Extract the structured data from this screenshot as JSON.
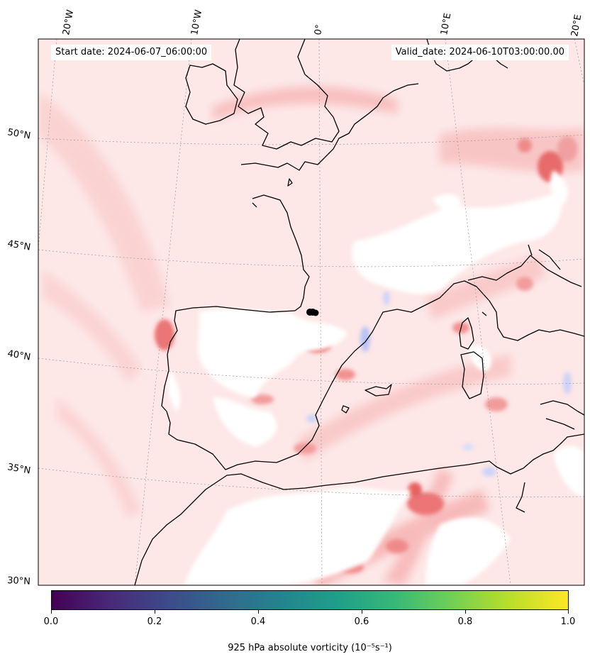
{
  "header": {
    "start_date": "Start date: 2024-06-07_06:00:00",
    "valid_date": "Valid_date: 2024-06-10T03:00:00.00"
  },
  "map": {
    "projection": "conic",
    "extent": {
      "lon_min": -20,
      "lon_max": 20,
      "lat_min": 30,
      "lat_max": 54
    },
    "gridlines": "on",
    "lon_labels": [
      "20°W",
      "10°W",
      "0°",
      "10°E",
      "20°E"
    ],
    "lat_labels": [
      "50°N",
      "45°N",
      "40°N",
      "35°N",
      "30°N"
    ],
    "field_colors": {
      "positive": "#f6a9a9",
      "strong_positive": "#e85656",
      "negative": "#c9d0f7",
      "zero": "#ffffff"
    },
    "marker": {
      "description": "black dot cluster",
      "lon": -0.1,
      "lat": 41.5
    }
  },
  "colorbar": {
    "colormap": "viridis",
    "min": 0.0,
    "max": 1.0,
    "ticks": [
      "0.0",
      "0.2",
      "0.4",
      "0.6",
      "0.8",
      "1.0"
    ],
    "label": "925 hPa absolute vorticity (10⁻⁵s⁻¹)"
  }
}
